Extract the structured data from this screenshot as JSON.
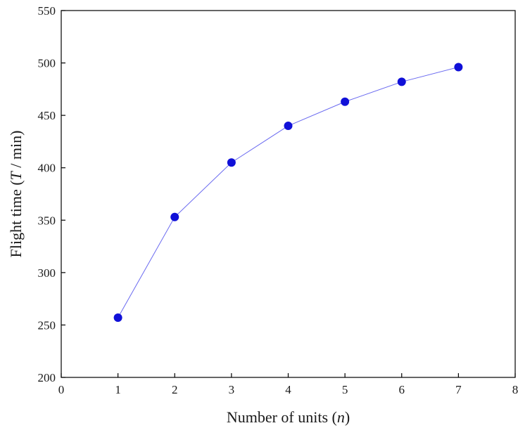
{
  "chart_data": {
    "type": "line",
    "title": "",
    "xlabel": {
      "prefix": "Number of units (",
      "var": "n",
      "suffix": ")"
    },
    "ylabel": {
      "prefix": "Flight time (",
      "var": "T",
      "suffix": " / min)"
    },
    "xlim": [
      0,
      8
    ],
    "ylim": [
      200,
      550
    ],
    "xticks": [
      0,
      1,
      2,
      3,
      4,
      5,
      6,
      7,
      8
    ],
    "yticks": [
      200,
      250,
      300,
      350,
      400,
      450,
      500,
      550
    ],
    "grid": false,
    "series": [
      {
        "x": [
          1,
          2,
          3,
          4,
          5,
          6,
          7
        ],
        "y": [
          257,
          353,
          405,
          440,
          463,
          482,
          496
        ],
        "color": "#1010d8",
        "line_color": "#6a6af0",
        "marker": "circle"
      }
    ]
  }
}
